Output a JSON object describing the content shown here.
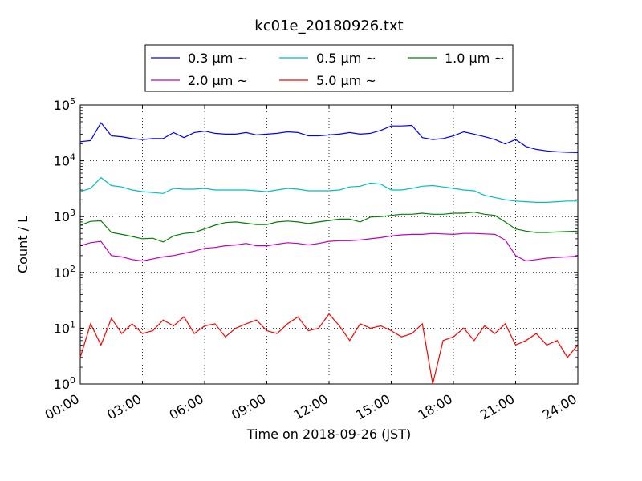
{
  "chart_data": {
    "type": "line",
    "title": "kc01e_20180926.txt",
    "xlabel": "Time on 2018-09-26 (JST)",
    "ylabel": "Count / L",
    "y_scale": "log",
    "ylim": [
      1,
      100000
    ],
    "xlim": [
      "2018-09-26 00:00",
      "2018-09-27 00:00"
    ],
    "grid": true,
    "legend_position": "top-center, outside plot",
    "x_ticks": [
      "00:00",
      "03:00",
      "06:00",
      "09:00",
      "12:00",
      "15:00",
      "18:00",
      "21:00",
      "24:00"
    ],
    "y_ticks": [
      {
        "base": "10",
        "exp": "0"
      },
      {
        "base": "10",
        "exp": "1"
      },
      {
        "base": "10",
        "exp": "2"
      },
      {
        "base": "10",
        "exp": "3"
      },
      {
        "base": "10",
        "exp": "4"
      },
      {
        "base": "10",
        "exp": "5"
      }
    ],
    "x_hours": [
      0,
      0.5,
      1,
      1.5,
      2,
      2.5,
      3,
      3.5,
      4,
      4.5,
      5,
      5.5,
      6,
      6.5,
      7,
      7.5,
      8,
      8.5,
      9,
      9.5,
      10,
      10.5,
      11,
      11.5,
      12,
      12.5,
      13,
      13.5,
      14,
      14.5,
      15,
      15.5,
      16,
      16.5,
      17,
      17.5,
      18,
      18.5,
      19,
      19.5,
      20,
      20.5,
      21,
      21.5,
      22,
      22.5,
      23,
      23.5,
      24
    ],
    "series": [
      {
        "name": "0.3 μm ~",
        "color": "#0000ff",
        "values": [
          22000,
          23000,
          48000,
          28000,
          27000,
          25000,
          24000,
          25000,
          25000,
          32000,
          26000,
          32000,
          34000,
          31000,
          30000,
          30000,
          32000,
          29000,
          30000,
          31000,
          33000,
          32000,
          28000,
          28000,
          29000,
          30000,
          32000,
          30000,
          31000,
          35000,
          42000,
          42000,
          43000,
          26000,
          24000,
          25000,
          28000,
          33000,
          30000,
          27000,
          24000,
          20000,
          24000,
          18000,
          16000,
          15000,
          14500,
          14200,
          14000
        ]
      },
      {
        "name": "0.5 μm ~",
        "color": "#00bfbf",
        "values": [
          2800,
          3200,
          5000,
          3600,
          3400,
          3000,
          2800,
          2700,
          2600,
          3200,
          3100,
          3100,
          3200,
          3000,
          3000,
          3000,
          3000,
          2900,
          2800,
          3000,
          3200,
          3100,
          2900,
          2900,
          2900,
          3000,
          3400,
          3500,
          4000,
          3800,
          3000,
          3000,
          3200,
          3500,
          3600,
          3400,
          3200,
          3000,
          2900,
          2400,
          2200,
          2000,
          1900,
          1850,
          1800,
          1800,
          1850,
          1900,
          1900
        ]
      },
      {
        "name": "1.0 μm ~",
        "color": "#008000",
        "values": [
          700,
          820,
          840,
          520,
          480,
          440,
          400,
          410,
          350,
          450,
          500,
          520,
          600,
          700,
          780,
          800,
          760,
          720,
          720,
          800,
          830,
          800,
          750,
          800,
          850,
          900,
          900,
          800,
          980,
          1000,
          1050,
          1100,
          1100,
          1150,
          1100,
          1100,
          1150,
          1150,
          1200,
          1100,
          1050,
          800,
          600,
          550,
          520,
          520,
          530,
          540,
          550
        ]
      },
      {
        "name": "2.0 μm ~",
        "color": "#bf00bf",
        "values": [
          300,
          340,
          360,
          200,
          190,
          170,
          160,
          175,
          190,
          200,
          220,
          240,
          270,
          280,
          300,
          310,
          330,
          300,
          300,
          320,
          340,
          330,
          310,
          330,
          360,
          370,
          370,
          380,
          400,
          420,
          450,
          470,
          480,
          480,
          500,
          490,
          480,
          500,
          500,
          490,
          480,
          380,
          200,
          160,
          170,
          180,
          185,
          190,
          195
        ]
      },
      {
        "name": "5.0 μm ~",
        "color": "#ff0000",
        "values": [
          3,
          12,
          5,
          15,
          8,
          12,
          8,
          9,
          14,
          11,
          16,
          8,
          11,
          12,
          7,
          10,
          12,
          14,
          9,
          8,
          12,
          16,
          9,
          10,
          18,
          11,
          6,
          12,
          10,
          11,
          9,
          7,
          8,
          12,
          1,
          6,
          7,
          10,
          6,
          11,
          8,
          12,
          5,
          6,
          8,
          5,
          6,
          3,
          5
        ]
      }
    ]
  }
}
